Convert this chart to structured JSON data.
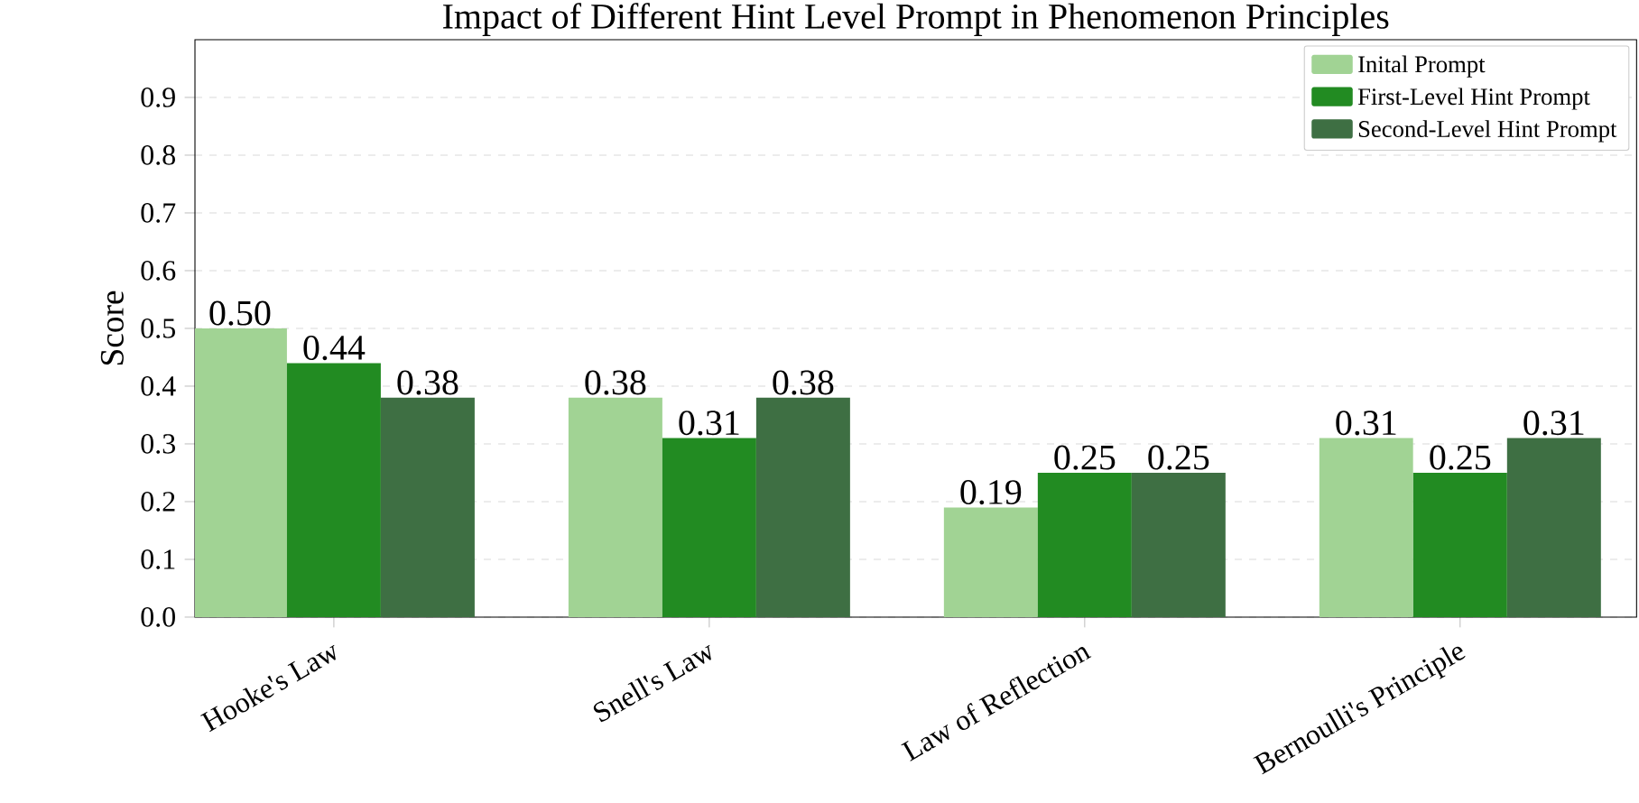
{
  "chart_data": {
    "type": "bar",
    "title": "Impact of Different Hint Level Prompt in Phenomenon Principles",
    "ylabel": "Score",
    "categories": [
      "Hooke's Law",
      "Snell's Law",
      "Law of Reflection",
      "Bernoulli's Principle"
    ],
    "series": [
      {
        "name": "Inital Prompt",
        "color": "#a1d394",
        "values": [
          0.5,
          0.38,
          0.19,
          0.31
        ],
        "value_labels": [
          "0.50",
          "0.38",
          "0.19",
          "0.31"
        ]
      },
      {
        "name": "First-Level Hint Prompt",
        "color": "#228b22",
        "values": [
          0.44,
          0.31,
          0.25,
          0.25
        ],
        "value_labels": [
          "0.44",
          "0.31",
          "0.25",
          "0.25"
        ]
      },
      {
        "name": "Second-Level Hint Prompt",
        "color": "#3e6f43",
        "values": [
          0.38,
          0.38,
          0.25,
          0.31
        ],
        "value_labels": [
          "0.38",
          "0.38",
          "0.25",
          "0.31"
        ]
      }
    ],
    "ylim": [
      0,
      1.0
    ],
    "yticks": [
      {
        "value": 0,
        "label": "0.0"
      },
      {
        "value": 0.1,
        "label": "0.1"
      },
      {
        "value": 0.2,
        "label": "0.2"
      },
      {
        "value": 0.3,
        "label": "0.3"
      },
      {
        "value": 0.4,
        "label": "0.4"
      },
      {
        "value": 0.5,
        "label": "0.5"
      },
      {
        "value": 0.6,
        "label": "0.6"
      },
      {
        "value": 0.7,
        "label": "0.7"
      },
      {
        "value": 0.8,
        "label": "0.8"
      },
      {
        "value": 0.9,
        "label": "0.9"
      }
    ],
    "grid": "y",
    "legend": "top right"
  }
}
